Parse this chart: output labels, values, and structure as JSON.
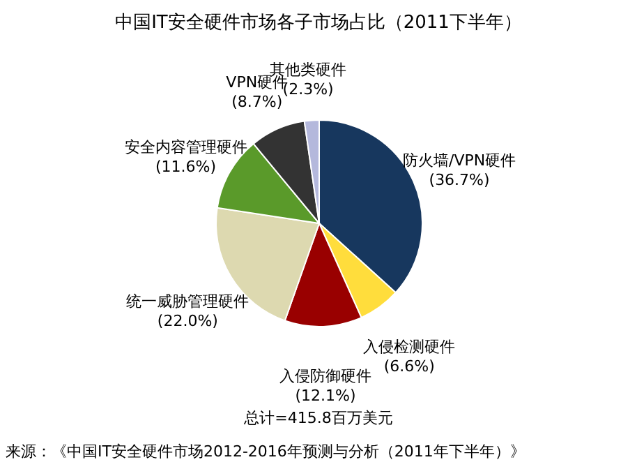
{
  "chart_data": {
    "type": "pie",
    "title": "中国IT安全硬件市场各子市场占比（2011下半年）",
    "categories": [
      "防火墙/VPN硬件",
      "入侵检测硬件",
      "入侵防御硬件",
      "统一威胁管理硬件",
      "安全内容管理硬件",
      "VPN硬件",
      "其他类硬件"
    ],
    "values": [
      36.7,
      6.6,
      12.1,
      22.0,
      11.6,
      8.7,
      2.3
    ],
    "value_labels": [
      "(36.7%)",
      "(6.6%)",
      "(12.1%)",
      "(22.0%)",
      "(11.6%)",
      "(8.7%)",
      "(2.3%)"
    ],
    "colors": [
      "#17375e",
      "#ffdd3c",
      "#990000",
      "#ddd9b0",
      "#5a9a2a",
      "#333333",
      "#b4b8dc"
    ],
    "annotations": [
      "总计=415.8百万美元",
      "来源：《中国IT安全硬件市场2012-2016年预测与分析（2011年下半年）》"
    ]
  }
}
